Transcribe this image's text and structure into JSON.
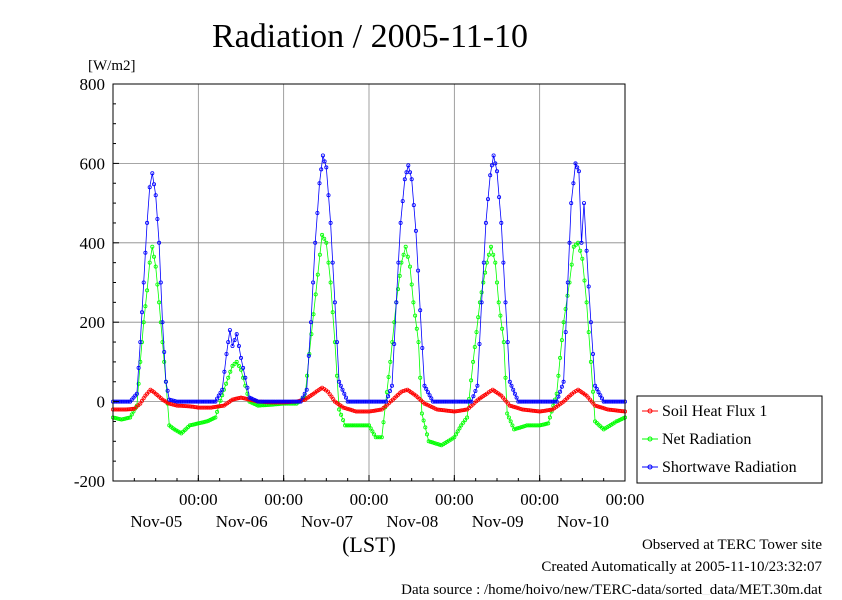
{
  "chart_data": {
    "type": "line",
    "title": "Radiation / 2005-11-10",
    "ylabel_unit": "[W/m2]",
    "xlabel": "(LST)",
    "ylim": [
      -200,
      800
    ],
    "y_ticks": [
      -200,
      0,
      200,
      400,
      600,
      800
    ],
    "x_axis_start_days": 0,
    "x_axis_end_days": 6,
    "x_tick_labels": [
      {
        "time": "00:00",
        "date": "Nov-05"
      },
      {
        "time": "00:00",
        "date": "Nov-06"
      },
      {
        "time": "00:00",
        "date": "Nov-07"
      },
      {
        "time": "00:00",
        "date": "Nov-08"
      },
      {
        "time": "00:00",
        "date": "Nov-09"
      },
      {
        "time": "00:00",
        "date": "Nov-10"
      }
    ],
    "grid": true,
    "legend_position": "right",
    "series": [
      {
        "name": "Soil Heat Flux 1",
        "color": "#ff0000",
        "marker": "circle",
        "points": [
          [
            0.0,
            -20
          ],
          [
            0.15,
            -20
          ],
          [
            0.25,
            -18
          ],
          [
            0.32,
            -5
          ],
          [
            0.38,
            15
          ],
          [
            0.44,
            30
          ],
          [
            0.5,
            20
          ],
          [
            0.58,
            5
          ],
          [
            0.66,
            -5
          ],
          [
            0.75,
            -10
          ],
          [
            0.9,
            -12
          ],
          [
            1.0,
            -15
          ],
          [
            1.15,
            -15
          ],
          [
            1.3,
            -10
          ],
          [
            1.4,
            5
          ],
          [
            1.5,
            10
          ],
          [
            1.6,
            5
          ],
          [
            1.7,
            0
          ],
          [
            1.85,
            -2
          ],
          [
            2.0,
            -2
          ],
          [
            2.15,
            0
          ],
          [
            2.25,
            5
          ],
          [
            2.35,
            20
          ],
          [
            2.45,
            35
          ],
          [
            2.52,
            25
          ],
          [
            2.6,
            0
          ],
          [
            2.7,
            -15
          ],
          [
            2.85,
            -25
          ],
          [
            3.0,
            -25
          ],
          [
            3.15,
            -20
          ],
          [
            3.28,
            5
          ],
          [
            3.38,
            25
          ],
          [
            3.45,
            30
          ],
          [
            3.55,
            15
          ],
          [
            3.65,
            -5
          ],
          [
            3.8,
            -20
          ],
          [
            4.0,
            -25
          ],
          [
            4.15,
            -20
          ],
          [
            4.28,
            5
          ],
          [
            4.38,
            20
          ],
          [
            4.45,
            30
          ],
          [
            4.55,
            15
          ],
          [
            4.65,
            -10
          ],
          [
            4.8,
            -20
          ],
          [
            5.0,
            -25
          ],
          [
            5.15,
            -20
          ],
          [
            5.28,
            0
          ],
          [
            5.38,
            20
          ],
          [
            5.45,
            30
          ],
          [
            5.55,
            15
          ],
          [
            5.65,
            -10
          ],
          [
            5.8,
            -20
          ],
          [
            6.0,
            -25
          ]
        ]
      },
      {
        "name": "Net Radiation",
        "color": "#00ff00",
        "marker": "circle",
        "points": [
          [
            0.0,
            -40
          ],
          [
            0.1,
            -45
          ],
          [
            0.2,
            -40
          ],
          [
            0.28,
            -10
          ],
          [
            0.32,
            100
          ],
          [
            0.36,
            200
          ],
          [
            0.4,
            280
          ],
          [
            0.43,
            350
          ],
          [
            0.46,
            390
          ],
          [
            0.5,
            340
          ],
          [
            0.54,
            250
          ],
          [
            0.58,
            150
          ],
          [
            0.62,
            50
          ],
          [
            0.66,
            -60
          ],
          [
            0.72,
            -70
          ],
          [
            0.8,
            -80
          ],
          [
            0.9,
            -60
          ],
          [
            1.0,
            -55
          ],
          [
            1.1,
            -50
          ],
          [
            1.2,
            -40
          ],
          [
            1.3,
            30
          ],
          [
            1.35,
            60
          ],
          [
            1.4,
            90
          ],
          [
            1.45,
            100
          ],
          [
            1.5,
            80
          ],
          [
            1.55,
            40
          ],
          [
            1.6,
            0
          ],
          [
            1.7,
            -10
          ],
          [
            1.85,
            -8
          ],
          [
            2.0,
            -5
          ],
          [
            2.15,
            -5
          ],
          [
            2.25,
            10
          ],
          [
            2.3,
            120
          ],
          [
            2.35,
            220
          ],
          [
            2.4,
            320
          ],
          [
            2.45,
            420
          ],
          [
            2.5,
            400
          ],
          [
            2.55,
            300
          ],
          [
            2.6,
            150
          ],
          [
            2.65,
            -20
          ],
          [
            2.72,
            -60
          ],
          [
            2.85,
            -60
          ],
          [
            3.0,
            -60
          ],
          [
            3.08,
            -90
          ],
          [
            3.15,
            -90
          ],
          [
            3.25,
            100
          ],
          [
            3.32,
            250
          ],
          [
            3.38,
            350
          ],
          [
            3.43,
            390
          ],
          [
            3.48,
            340
          ],
          [
            3.52,
            250
          ],
          [
            3.58,
            150
          ],
          [
            3.62,
            -30
          ],
          [
            3.7,
            -100
          ],
          [
            3.85,
            -110
          ],
          [
            4.0,
            -90
          ],
          [
            4.08,
            -60
          ],
          [
            4.15,
            -40
          ],
          [
            4.22,
            100
          ],
          [
            4.3,
            250
          ],
          [
            4.38,
            350
          ],
          [
            4.43,
            390
          ],
          [
            4.48,
            350
          ],
          [
            4.52,
            250
          ],
          [
            4.58,
            150
          ],
          [
            4.62,
            -30
          ],
          [
            4.7,
            -70
          ],
          [
            4.85,
            -60
          ],
          [
            5.0,
            -60
          ],
          [
            5.1,
            -55
          ],
          [
            5.2,
            20
          ],
          [
            5.28,
            200
          ],
          [
            5.35,
            300
          ],
          [
            5.4,
            390
          ],
          [
            5.45,
            400
          ],
          [
            5.5,
            360
          ],
          [
            5.55,
            250
          ],
          [
            5.6,
            100
          ],
          [
            5.65,
            -50
          ],
          [
            5.75,
            -70
          ],
          [
            5.9,
            -50
          ],
          [
            6.0,
            -40
          ]
        ]
      },
      {
        "name": "Shortwave Radiation",
        "color": "#0000ff",
        "marker": "circle",
        "points": [
          [
            0.0,
            0
          ],
          [
            0.2,
            0
          ],
          [
            0.28,
            20
          ],
          [
            0.32,
            150
          ],
          [
            0.36,
            300
          ],
          [
            0.4,
            450
          ],
          [
            0.43,
            540
          ],
          [
            0.46,
            575
          ],
          [
            0.5,
            520
          ],
          [
            0.54,
            400
          ],
          [
            0.58,
            200
          ],
          [
            0.62,
            50
          ],
          [
            0.66,
            5
          ],
          [
            0.75,
            0
          ],
          [
            1.0,
            0
          ],
          [
            1.2,
            0
          ],
          [
            1.28,
            30
          ],
          [
            1.33,
            120
          ],
          [
            1.37,
            180
          ],
          [
            1.4,
            140
          ],
          [
            1.45,
            170
          ],
          [
            1.5,
            110
          ],
          [
            1.55,
            60
          ],
          [
            1.6,
            10
          ],
          [
            1.7,
            0
          ],
          [
            2.0,
            0
          ],
          [
            2.2,
            0
          ],
          [
            2.27,
            30
          ],
          [
            2.32,
            200
          ],
          [
            2.37,
            400
          ],
          [
            2.42,
            550
          ],
          [
            2.46,
            620
          ],
          [
            2.5,
            590
          ],
          [
            2.55,
            450
          ],
          [
            2.6,
            250
          ],
          [
            2.65,
            50
          ],
          [
            2.75,
            0
          ],
          [
            3.0,
            0
          ],
          [
            3.2,
            0
          ],
          [
            3.27,
            40
          ],
          [
            3.32,
            250
          ],
          [
            3.37,
            450
          ],
          [
            3.42,
            560
          ],
          [
            3.46,
            595
          ],
          [
            3.5,
            560
          ],
          [
            3.55,
            430
          ],
          [
            3.6,
            230
          ],
          [
            3.65,
            40
          ],
          [
            3.75,
            0
          ],
          [
            4.0,
            0
          ],
          [
            4.2,
            0
          ],
          [
            4.27,
            40
          ],
          [
            4.32,
            250
          ],
          [
            4.37,
            450
          ],
          [
            4.42,
            570
          ],
          [
            4.46,
            620
          ],
          [
            4.5,
            580
          ],
          [
            4.55,
            450
          ],
          [
            4.6,
            250
          ],
          [
            4.65,
            50
          ],
          [
            4.75,
            0
          ],
          [
            5.0,
            0
          ],
          [
            5.2,
            0
          ],
          [
            5.28,
            50
          ],
          [
            5.33,
            300
          ],
          [
            5.37,
            500
          ],
          [
            5.42,
            600
          ],
          [
            5.46,
            580
          ],
          [
            5.49,
            400
          ],
          [
            5.52,
            500
          ],
          [
            5.55,
            380
          ],
          [
            5.6,
            200
          ],
          [
            5.65,
            40
          ],
          [
            5.75,
            0
          ],
          [
            6.0,
            0
          ]
        ]
      }
    ]
  },
  "footer": {
    "line1": "Observed at TERC Tower site",
    "line2": "Created Automatically at 2005-11-10/23:32:07",
    "line3": "Data source : /home/hoivo/new/TERC-data/sorted_data/MET.30m.dat"
  }
}
